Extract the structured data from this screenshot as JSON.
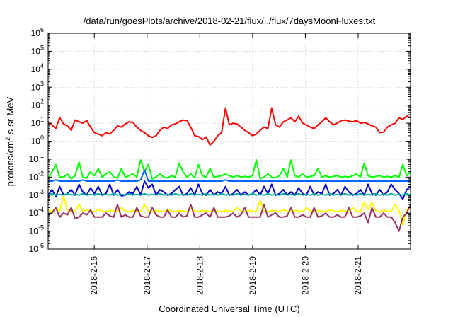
{
  "chart_data": {
    "type": "line",
    "title": "/data/run/goesPlots/archive/2018-02-21/flux/../flux/7daysMoonFluxes.txt",
    "xlabel": "Coordinated Universal Time (UTC)",
    "ylabel_prefix": "protons/cm",
    "ylabel_sup": "2",
    "ylabel_suffix": "-s-sr-MeV",
    "yscale": "log",
    "ylim": [
      1e-06,
      1000000.0
    ],
    "y_ticks": [
      {
        "base": "10",
        "exp": "-6"
      },
      {
        "base": "10",
        "exp": "-5"
      },
      {
        "base": "10",
        "exp": "-4"
      },
      {
        "base": "10",
        "exp": "-3"
      },
      {
        "base": "10",
        "exp": "-2"
      },
      {
        "base": "10",
        "exp": "-1"
      },
      {
        "base": "10",
        "exp": "0"
      },
      {
        "base": "10",
        "exp": "1"
      },
      {
        "base": "10",
        "exp": "2"
      },
      {
        "base": "10",
        "exp": "3"
      },
      {
        "base": "10",
        "exp": "4"
      },
      {
        "base": "10",
        "exp": "5"
      },
      {
        "base": "10",
        "exp": "6"
      }
    ],
    "xlim": [
      "2018-02-15 03:00",
      "2018-02-21 23:50"
    ],
    "x_ticks": [
      "2018-2-16",
      "2018-2-17",
      "2018-2-18",
      "2018-2-19",
      "2018-2-20",
      "2018-2-21"
    ],
    "grid": true,
    "series": [
      {
        "color": "#ff0000",
        "values": [
          12,
          8,
          5,
          20,
          9,
          7,
          4,
          15,
          12,
          10,
          14,
          6,
          3,
          2.5,
          2,
          3,
          2.5,
          4,
          7,
          6,
          9,
          12,
          11,
          6,
          4,
          3,
          2,
          1.6,
          2,
          4,
          6,
          5,
          8,
          9,
          12,
          15,
          14,
          6,
          2,
          1.8,
          1.2,
          1.7,
          0.6,
          1,
          2,
          3,
          70,
          8,
          10,
          9,
          6,
          4,
          3,
          2,
          2.5,
          4,
          6,
          5,
          70,
          8,
          6,
          12,
          15,
          20,
          12,
          25,
          10,
          8,
          6,
          5,
          8,
          12,
          20,
          12,
          8,
          10,
          14,
          15,
          13,
          12,
          14,
          10,
          11,
          9,
          7,
          6,
          3,
          3.2,
          6,
          8,
          10,
          20,
          16,
          25,
          20
        ]
      },
      {
        "color": "#00ff00",
        "values": [
          0.008,
          0.02,
          0.05,
          0.01,
          0.01,
          0.015,
          0.008,
          0.012,
          0.07,
          0.01,
          0.009,
          0.02,
          0.012,
          0.03,
          0.01,
          0.015,
          0.02,
          0.01,
          0.009,
          0.03,
          0.01,
          0.012,
          0.015,
          0.01,
          0.09,
          0.02,
          0.05,
          0.008,
          0.01,
          0.015,
          0.01,
          0.009,
          0.012,
          0.01,
          0.06,
          0.02,
          0.01,
          0.015,
          0.009,
          0.05,
          0.012,
          0.01,
          0.03,
          0.01,
          0.011,
          0.012,
          0.015,
          0.012,
          0.01,
          0.012,
          0.01,
          0.011,
          0.01,
          0.012,
          0.09,
          0.008,
          0.01,
          0.015,
          0.01,
          0.009,
          0.012,
          0.03,
          0.01,
          0.09,
          0.012,
          0.01,
          0.015,
          0.01,
          0.011,
          0.012,
          0.03,
          0.01,
          0.012,
          0.01,
          0.011,
          0.012,
          0.01,
          0.011,
          0.01,
          0.012,
          0.015,
          0.01,
          0.06,
          0.012,
          0.01,
          0.011,
          0.012,
          0.01,
          0.011,
          0.01,
          0.012,
          0.01,
          0.05,
          0.012,
          0.02
        ]
      },
      {
        "color": "#0066ff",
        "values": [
          0.006,
          0.006,
          0.007,
          0.006,
          0.006,
          0.006,
          0.006,
          0.006,
          0.006,
          0.007,
          0.006,
          0.006,
          0.006,
          0.006,
          0.006,
          0.006,
          0.006,
          0.006,
          0.007,
          0.006,
          0.006,
          0.006,
          0.006,
          0.006,
          0.007,
          0.025,
          0.006,
          0.006,
          0.006,
          0.006,
          0.006,
          0.006,
          0.006,
          0.006,
          0.006,
          0.006,
          0.006,
          0.006,
          0.006,
          0.006,
          0.006,
          0.006,
          0.006,
          0.006,
          0.006,
          0.006,
          0.007,
          0.006,
          0.006,
          0.006,
          0.006,
          0.006,
          0.006,
          0.006,
          0.006,
          0.006,
          0.006,
          0.006,
          0.006,
          0.006,
          0.006,
          0.006,
          0.006,
          0.006,
          0.006,
          0.006,
          0.006,
          0.006,
          0.006,
          0.006,
          0.006,
          0.006,
          0.006,
          0.006,
          0.006,
          0.006,
          0.006,
          0.006,
          0.006,
          0.006,
          0.006,
          0.006,
          0.006,
          0.006,
          0.006,
          0.006,
          0.006,
          0.006,
          0.006,
          0.006,
          0.006,
          0.006,
          0.006,
          0.006,
          0.006
        ]
      },
      {
        "color": "#0000cc",
        "values": [
          0.001,
          0.002,
          0.0008,
          0.003,
          0.001,
          0.0012,
          0.002,
          0.001,
          0.004,
          0.0015,
          0.001,
          0.0025,
          0.0012,
          0.003,
          0.001,
          0.0012,
          0.004,
          0.001,
          0.002,
          0.0009,
          0.001,
          0.0015,
          0.0012,
          0.003,
          0.001,
          0.006,
          0.0025,
          0.004,
          0.001,
          0.002,
          0.0015,
          0.001,
          0.0012,
          0.002,
          0.003,
          0.001,
          0.0012,
          0.0025,
          0.001,
          0.004,
          0.0012,
          0.001,
          0.002,
          0.001,
          0.0015,
          0.0012,
          0.003,
          0.001,
          0.0012,
          0.002,
          0.001,
          0.0015,
          0.001,
          0.0012,
          0.002,
          0.001,
          0.003,
          0.0012,
          0.004,
          0.001,
          0.0012,
          0.002,
          0.001,
          0.0015,
          0.001,
          0.0025,
          0.0012,
          0.001,
          0.003,
          0.001,
          0.0015,
          0.0012,
          0.004,
          0.001,
          0.0012,
          0.002,
          0.001,
          0.003,
          0.0015,
          0.001,
          0.0012,
          0.002,
          0.001,
          0.004,
          0.0012,
          0.001,
          0.002,
          0.001,
          0.0015,
          0.004,
          0.002,
          0.0012,
          0.0006,
          0.002,
          0.003
        ]
      },
      {
        "color": "#00b0a0",
        "values": [
          0.001,
          0.0012,
          0.001,
          0.0011,
          0.001,
          0.0012,
          0.001,
          0.0011,
          0.001,
          0.0012,
          0.001,
          0.0011,
          0.001,
          0.0012,
          0.001,
          0.0011,
          0.001,
          0.0012,
          0.001,
          0.0011,
          0.001,
          0.0012,
          0.001,
          0.0011,
          0.001,
          0.0012,
          0.001,
          0.0011,
          0.001,
          0.0012,
          0.001,
          0.0011,
          0.001,
          0.0012,
          0.001,
          0.0011,
          0.001,
          0.0012,
          0.001,
          0.0011,
          0.001,
          0.0012,
          0.001,
          0.0011,
          0.001,
          0.0012,
          0.001,
          0.0011,
          0.001,
          0.0012,
          0.001,
          0.0011,
          0.001,
          0.0012,
          0.001,
          0.0011,
          0.001,
          0.0012,
          0.001,
          0.0011,
          0.001,
          0.0012,
          0.001,
          0.0011,
          0.001,
          0.0012,
          0.001,
          0.0011,
          0.001,
          0.0012,
          0.001,
          0.0011,
          0.001,
          0.0012,
          0.001,
          0.0011,
          0.001,
          0.0012,
          0.001,
          0.0011,
          0.001,
          0.0012,
          0.001,
          0.0011,
          0.001,
          0.0012,
          0.001,
          0.0011,
          0.001,
          0.0012,
          0.001,
          0.0011,
          0.001,
          0.0012,
          0.001
        ]
      },
      {
        "color": "#ffff00",
        "values": [
          0.00015,
          0.00012,
          0.0002,
          0.00013,
          0.0009,
          0.00014,
          0.00012,
          0.00013,
          0.0003,
          0.00012,
          0.00015,
          0.00013,
          0.00012,
          0.00016,
          0.00013,
          0.00012,
          0.00014,
          0.00013,
          0.00012,
          0.0002,
          0.00013,
          0.00012,
          0.00014,
          0.00013,
          0.00012,
          0.0003,
          0.00013,
          0.00012,
          0.00014,
          0.00013,
          0.00012,
          0.00015,
          0.00013,
          0.00012,
          0.00014,
          0.00013,
          0.00012,
          0.0002,
          0.00013,
          0.00012,
          0.00014,
          0.00013,
          0.00012,
          0.00015,
          0.00013,
          0.00012,
          0.00014,
          0.00013,
          0.00012,
          0.0002,
          0.00013,
          0.00012,
          0.00014,
          0.00013,
          0.00012,
          0.0005,
          0.00013,
          0.00012,
          0.00014,
          0.00013,
          0.00012,
          0.00015,
          0.00013,
          0.00012,
          0.00014,
          0.00013,
          0.00012,
          0.0002,
          0.00013,
          0.00012,
          0.00014,
          0.00013,
          0.00012,
          0.00015,
          0.00013,
          0.00012,
          0.00014,
          0.00013,
          0.00012,
          0.0002,
          0.00013,
          0.00012,
          0.0004,
          0.00015,
          0.0004,
          0.00013,
          0.00012,
          0.00014,
          0.00013,
          0.00012,
          0.0003,
          0.00015,
          2e-05,
          0.00015,
          0.0002
        ]
      },
      {
        "color": "#993366",
        "values": [
          8e-05,
          0.0001,
          0.0002,
          6e-05,
          0.0001,
          8e-05,
          0.0002,
          5e-05,
          6e-05,
          0.0001,
          8e-05,
          0.00015,
          6e-05,
          6e-05,
          6e-05,
          0.0001,
          7e-05,
          6e-05,
          0.0003,
          6e-05,
          8e-05,
          6e-05,
          6e-05,
          0.0002,
          7e-05,
          6e-05,
          6e-05,
          0.0002,
          8e-05,
          6e-05,
          6e-05,
          0.00015,
          6e-05,
          6e-05,
          0.0001,
          6e-05,
          7e-05,
          0.0003,
          6e-05,
          6e-05,
          8e-05,
          0.0001,
          6e-05,
          0.0002,
          6e-05,
          6e-05,
          6e-05,
          7e-05,
          0.0001,
          6e-05,
          8e-05,
          0.0002,
          6e-05,
          6e-05,
          6e-05,
          6e-05,
          0.0003,
          6e-05,
          8e-05,
          0.0001,
          6e-05,
          6e-05,
          7e-05,
          0.0002,
          6e-05,
          6e-05,
          8e-05,
          6e-05,
          6e-05,
          0.0002,
          6e-05,
          7e-05,
          0.0001,
          6e-05,
          6e-05,
          8e-05,
          6e-05,
          6e-05,
          0.0002,
          6e-05,
          6e-05,
          7e-05,
          0.0001,
          3e-05,
          0.0002,
          6e-05,
          6e-05,
          0.0001,
          6e-05,
          6e-05,
          3e-05,
          1e-05,
          6e-05,
          0.0001,
          0.0003
        ]
      }
    ]
  }
}
